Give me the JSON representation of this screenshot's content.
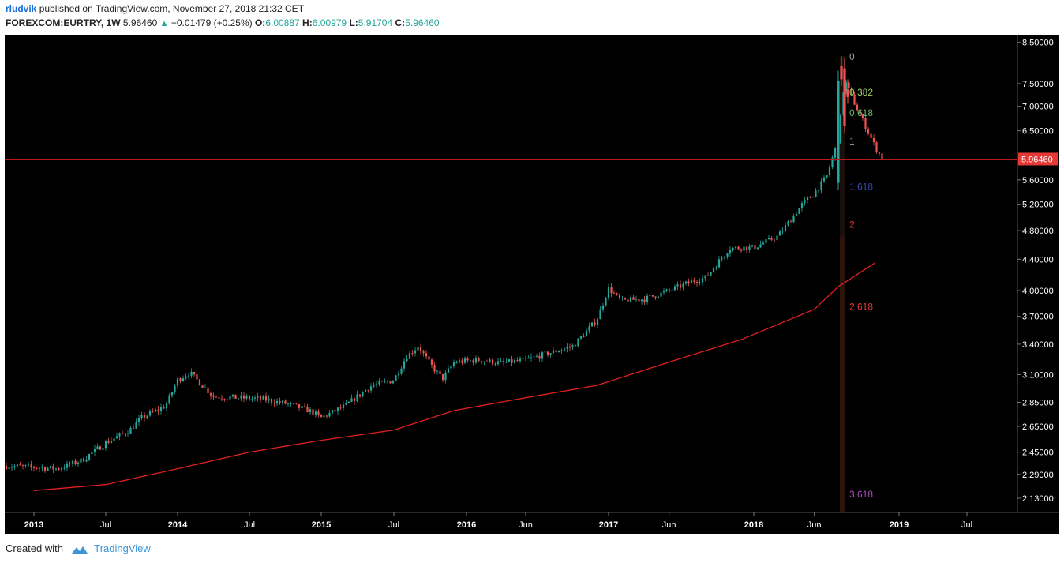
{
  "header": {
    "author": "rludvik",
    "published_text": "published on TradingView.com, November 27, 2018 21:32 CET",
    "symbol": "FOREXCOM:EURTRY, 1W",
    "last": "5.96460",
    "change": "+0.01479 (+0.25%)",
    "o_label": "O:",
    "o_value": "6.00887",
    "h_label": "H:",
    "h_value": "6.00979",
    "l_label": "L:",
    "l_value": "5.91704",
    "c_label": "C:",
    "c_value": "5.96460"
  },
  "footer": {
    "created_with": "Created with",
    "brand": "TradingView"
  },
  "colors": {
    "background": "#000000",
    "up": "#26a69a",
    "down": "#ef5350",
    "ma": "#e0201e",
    "price_line": "#b71c1c",
    "price_label_bg": "#e53935",
    "axis_text": "#ffffff"
  },
  "chart_data": {
    "type": "candlestick",
    "timeframe": "1W",
    "scale": "log",
    "x_ticks": [
      "2013",
      "Jul",
      "2014",
      "Jul",
      "2015",
      "Jul",
      "2016",
      "Jun",
      "2017",
      "Jun",
      "2018",
      "Jun",
      "2019",
      "Jul"
    ],
    "y_ticks": [
      "8.50000",
      "7.50000",
      "7.00000",
      "6.50000",
      "5.60000",
      "5.20000",
      "4.80000",
      "4.40000",
      "4.00000",
      "3.70000",
      "3.40000",
      "3.10000",
      "2.85000",
      "2.65000",
      "2.45000",
      "2.29000",
      "2.13000"
    ],
    "ylim": [
      2.04,
      8.7
    ],
    "last_price": 5.9646,
    "last_price_label": "5.96460",
    "close_path": [
      [
        "2013-01",
        2.35
      ],
      [
        "2013-03",
        2.33
      ],
      [
        "2013-05",
        2.39
      ],
      [
        "2013-07",
        2.52
      ],
      [
        "2013-09",
        2.62
      ],
      [
        "2013-10",
        2.72
      ],
      [
        "2013-12",
        2.82
      ],
      [
        "2014-01",
        3.05
      ],
      [
        "2014-02",
        3.12
      ],
      [
        "2014-04",
        2.9
      ],
      [
        "2014-06",
        2.89
      ],
      [
        "2014-08",
        2.88
      ],
      [
        "2014-10",
        2.84
      ],
      [
        "2014-12",
        2.78
      ],
      [
        "2015-01",
        2.72
      ],
      [
        "2015-03",
        2.82
      ],
      [
        "2015-05",
        2.99
      ],
      [
        "2015-07",
        3.05
      ],
      [
        "2015-08",
        3.27
      ],
      [
        "2015-09",
        3.38
      ],
      [
        "2015-10",
        3.2
      ],
      [
        "2015-11",
        3.06
      ],
      [
        "2015-12",
        3.22
      ],
      [
        "2016-02",
        3.24
      ],
      [
        "2016-04",
        3.21
      ],
      [
        "2016-06",
        3.24
      ],
      [
        "2016-08",
        3.31
      ],
      [
        "2016-10",
        3.38
      ],
      [
        "2016-12",
        3.66
      ],
      [
        "2017-01",
        4.03
      ],
      [
        "2017-02",
        3.88
      ],
      [
        "2017-04",
        3.9
      ],
      [
        "2017-06",
        4.0
      ],
      [
        "2017-08",
        4.12
      ],
      [
        "2017-09",
        4.16
      ],
      [
        "2017-11",
        4.55
      ],
      [
        "2018-01",
        4.56
      ],
      [
        "2018-03",
        4.72
      ],
      [
        "2018-05",
        5.2
      ],
      [
        "2018-06",
        5.38
      ],
      [
        "2018-07",
        5.65
      ],
      [
        "2018-08",
        6.35
      ],
      [
        "2018-08b",
        7.6
      ],
      [
        "2018-09",
        7.25
      ],
      [
        "2018-10",
        6.7
      ],
      [
        "2018-11",
        6.2
      ],
      [
        "2018-11b",
        5.9646
      ]
    ],
    "sma_path": [
      [
        "2013-01",
        2.18
      ],
      [
        "2013-07",
        2.22
      ],
      [
        "2014-01",
        2.33
      ],
      [
        "2014-07",
        2.45
      ],
      [
        "2015-01",
        2.54
      ],
      [
        "2015-07",
        2.62
      ],
      [
        "2015-12",
        2.78
      ],
      [
        "2016-06",
        2.89
      ],
      [
        "2016-12",
        3.0
      ],
      [
        "2017-06",
        3.22
      ],
      [
        "2017-12",
        3.45
      ],
      [
        "2018-06",
        3.78
      ],
      [
        "2018-08",
        4.05
      ],
      [
        "2018-11",
        4.35
      ]
    ],
    "fib_levels": [
      {
        "label": "0",
        "price": 8.15,
        "color": "#9e9e9e"
      },
      {
        "label": "0.382",
        "price": 7.32,
        "color": "#9ccc65"
      },
      {
        "label": "0.618",
        "price": 6.88,
        "color": "#66bb6a"
      },
      {
        "label": "1",
        "price": 6.31,
        "color": "#9e9e9e"
      },
      {
        "label": "1.618",
        "price": 5.5,
        "color": "#3949ab"
      },
      {
        "label": "2",
        "price": 4.9,
        "color": "#e53935"
      },
      {
        "label": "2.618",
        "price": 3.82,
        "color": "#e53935"
      },
      {
        "label": "3.618",
        "price": 2.16,
        "color": "#ab47bc"
      }
    ]
  }
}
